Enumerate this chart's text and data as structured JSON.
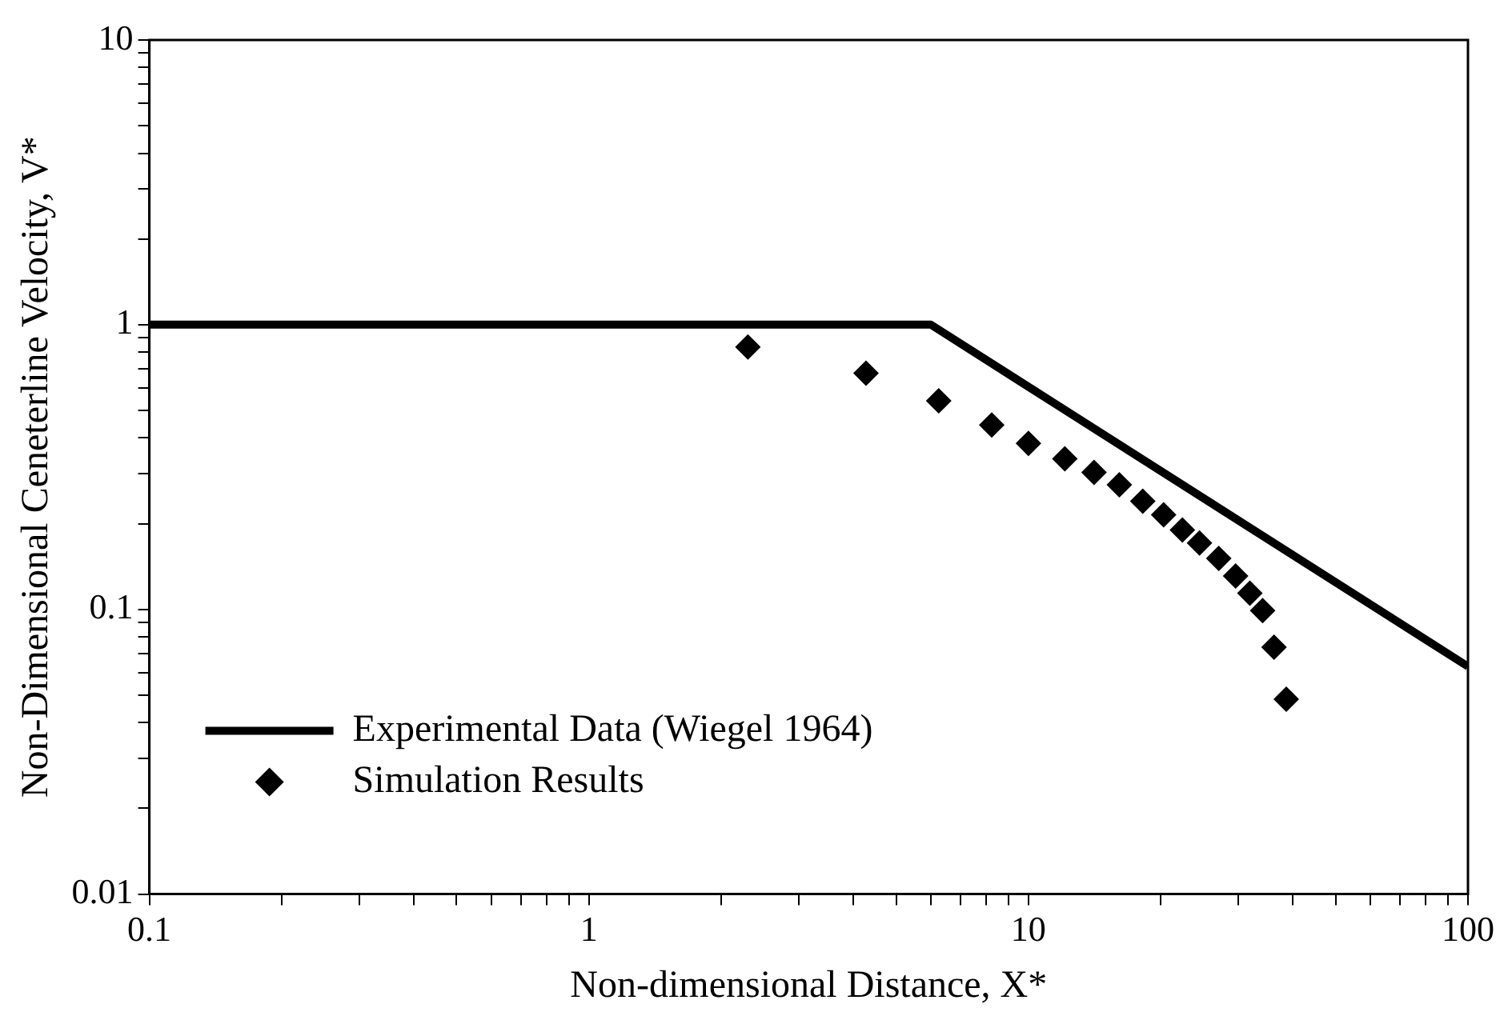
{
  "chart_data": {
    "type": "scatter",
    "xlabel": "Non-dimensional Distance, X*",
    "ylabel": "Non-Dimensional Ceneterline Velocity, V*",
    "log": "xy",
    "xlim": [
      0.1,
      100
    ],
    "ylim": [
      0.01,
      10
    ],
    "xticks": [
      0.1,
      {
        "value": 0.2,
        "label": null
      },
      {
        "value": 0.3,
        "label": null
      },
      {
        "value": 0.4,
        "label": null
      },
      {
        "value": 0.5,
        "label": null
      },
      {
        "value": 0.6,
        "label": null
      },
      {
        "value": 0.7,
        "label": null
      },
      {
        "value": 0.8,
        "label": null
      },
      {
        "value": 0.9,
        "label": null
      },
      1,
      {
        "value": 2,
        "label": null
      },
      {
        "value": 3,
        "label": null
      },
      {
        "value": 4,
        "label": null
      },
      {
        "value": 5,
        "label": null
      },
      {
        "value": 6,
        "label": null
      },
      {
        "value": 7,
        "label": null
      },
      {
        "value": 8,
        "label": null
      },
      {
        "value": 9,
        "label": null
      },
      10,
      {
        "value": 20,
        "label": null
      },
      {
        "value": 30,
        "label": null
      },
      {
        "value": 40,
        "label": null
      },
      {
        "value": 50,
        "label": null
      },
      {
        "value": 60,
        "label": null
      },
      {
        "value": 70,
        "label": null
      },
      {
        "value": 80,
        "label": null
      },
      {
        "value": 90,
        "label": null
      },
      100
    ],
    "yticks": [
      0.01,
      {
        "value": 0.02,
        "label": null
      },
      {
        "value": 0.03,
        "label": null
      },
      {
        "value": 0.04,
        "label": null
      },
      {
        "value": 0.05,
        "label": null
      },
      {
        "value": 0.06,
        "label": null
      },
      {
        "value": 0.07,
        "label": null
      },
      {
        "value": 0.08,
        "label": null
      },
      {
        "value": 0.09,
        "label": null
      },
      0.1,
      {
        "value": 0.2,
        "label": null
      },
      {
        "value": 0.3,
        "label": null
      },
      {
        "value": 0.4,
        "label": null
      },
      {
        "value": 0.5,
        "label": null
      },
      {
        "value": 0.6,
        "label": null
      },
      {
        "value": 0.7,
        "label": null
      },
      {
        "value": 0.8,
        "label": null
      },
      {
        "value": 0.9,
        "label": null
      },
      1,
      {
        "value": 2,
        "label": null
      },
      {
        "value": 3,
        "label": null
      },
      {
        "value": 4,
        "label": null
      },
      {
        "value": 5,
        "label": null
      },
      {
        "value": 6,
        "label": null
      },
      {
        "value": 7,
        "label": null
      },
      {
        "value": 8,
        "label": null
      },
      {
        "value": 9,
        "label": null
      },
      10
    ],
    "grid": false,
    "legend": "bottom left",
    "series": [
      {
        "name": "Experimental Data (Wiegel 1964)",
        "type": "line",
        "color": "#000000",
        "marker": "none",
        "line_style": "solid",
        "x": [
          0.1,
          6,
          100
        ],
        "values": [
          1,
          1,
          0.063
        ]
      },
      {
        "name": "Simulation Results",
        "type": "scatter",
        "color": "#000000",
        "marker": "diamond",
        "x": [
          2.3,
          4.27,
          6.25,
          8.25,
          10.0,
          12.1,
          14.1,
          16.1,
          18.2,
          20.3,
          22.4,
          24.5,
          27.1,
          29.6,
          31.9,
          34.1,
          36.2,
          38.6
        ],
        "values": [
          0.835,
          0.676,
          0.54,
          0.444,
          0.383,
          0.338,
          0.303,
          0.274,
          0.24,
          0.215,
          0.19,
          0.171,
          0.151,
          0.131,
          0.114,
          0.099,
          0.0737,
          0.0484
        ]
      }
    ]
  }
}
